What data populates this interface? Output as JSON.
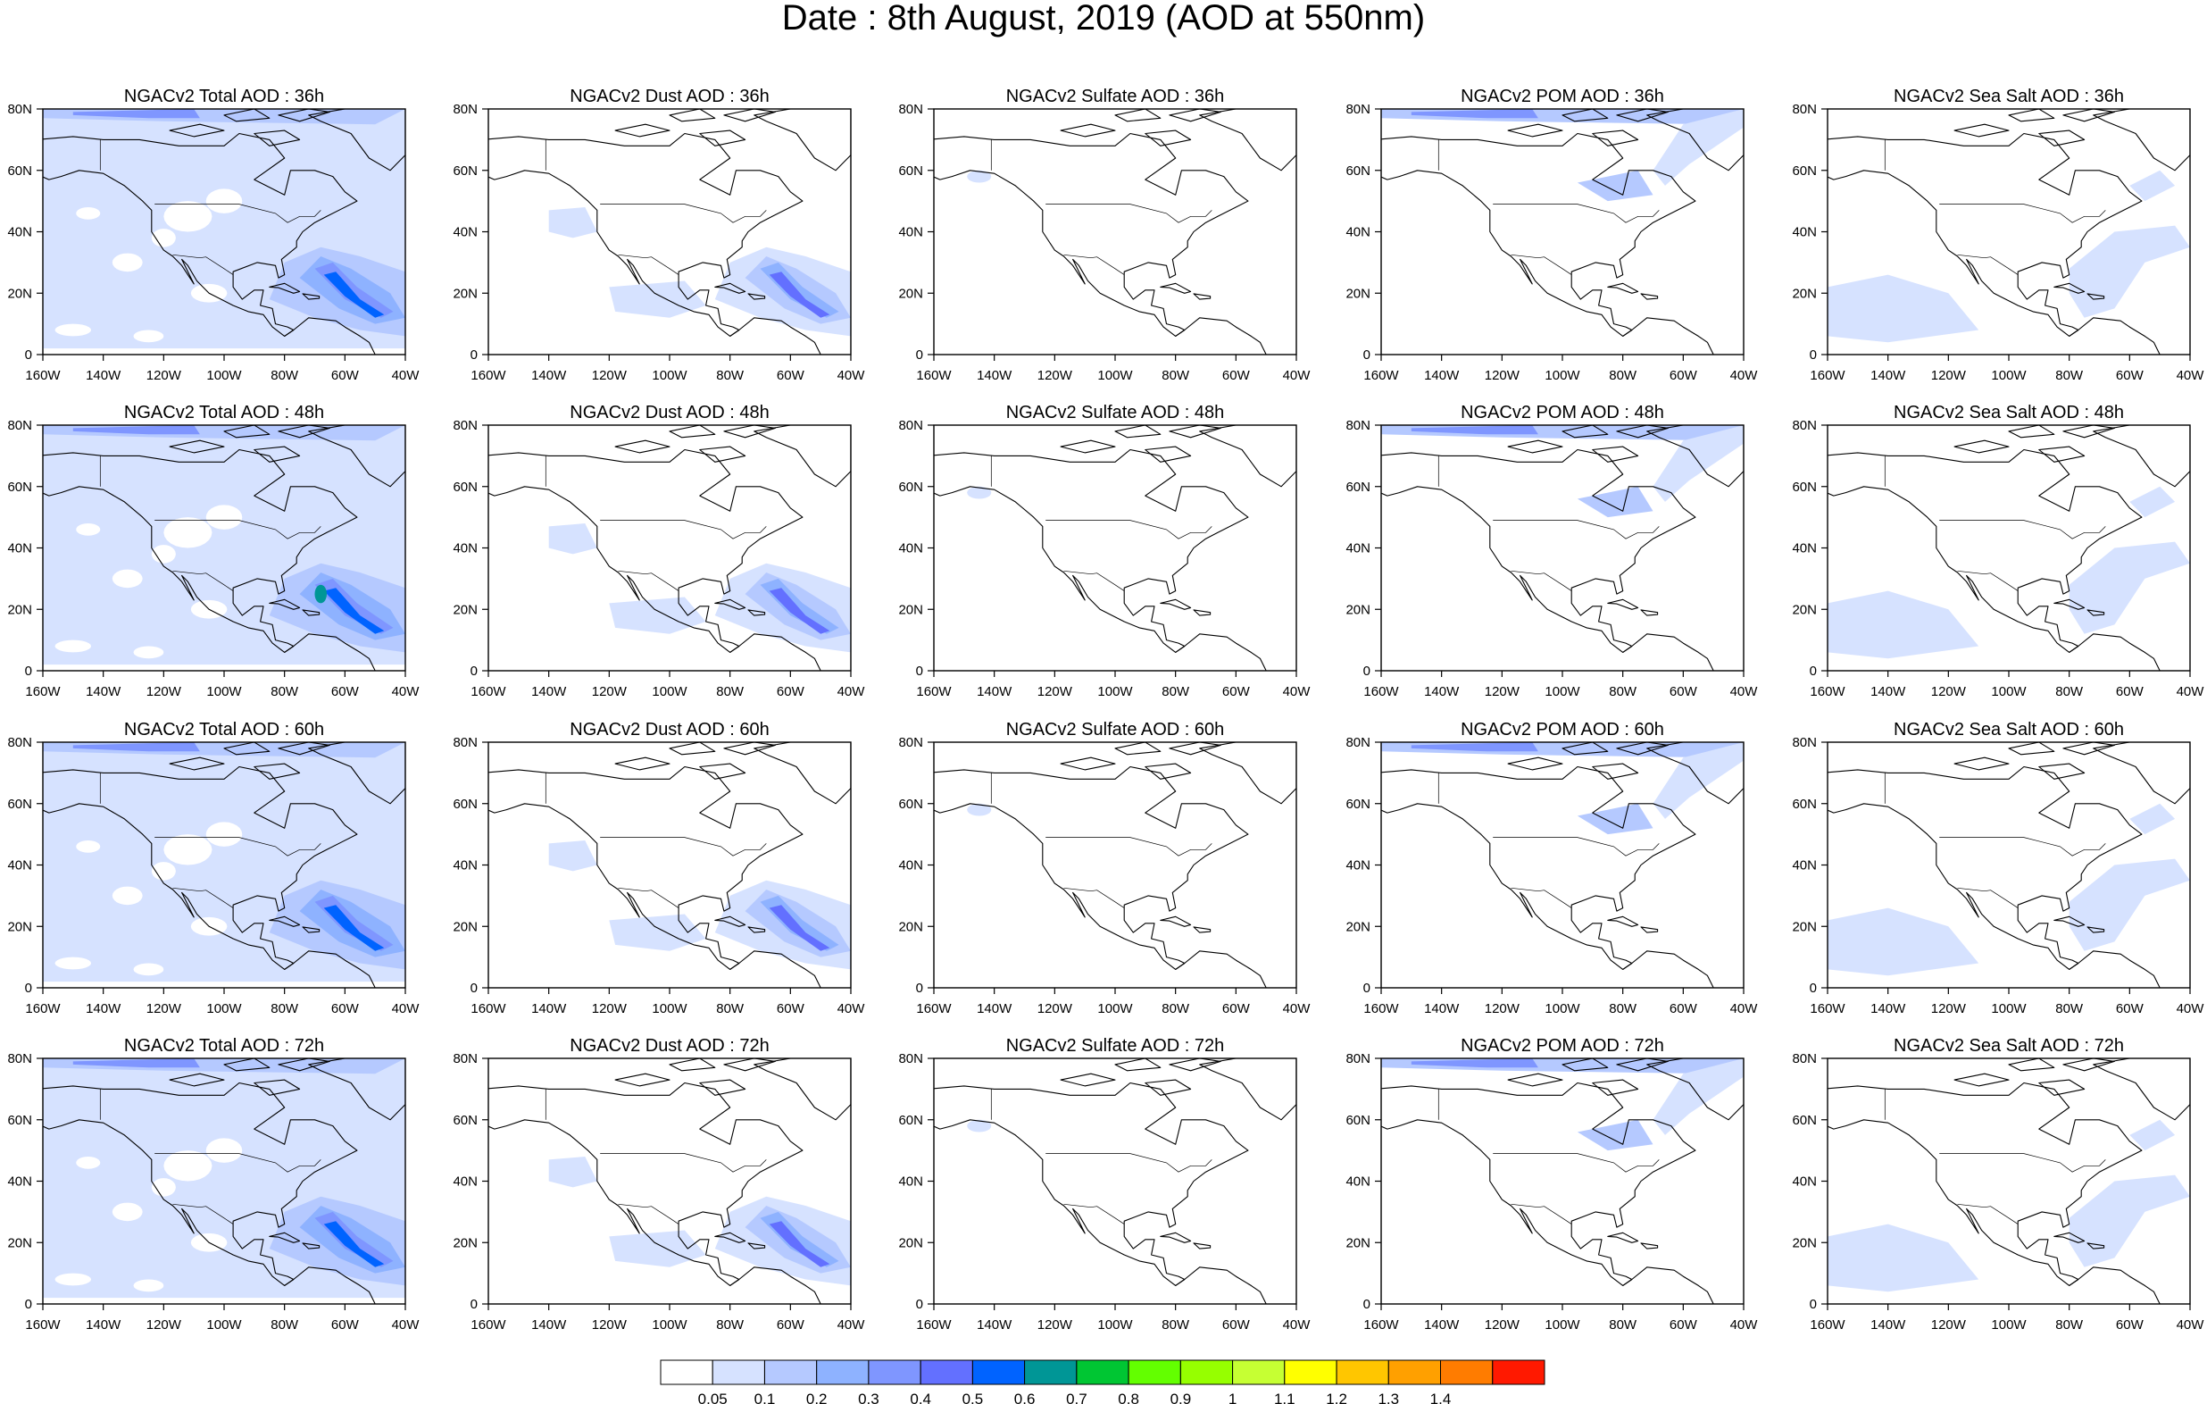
{
  "page": {
    "title": "Date : 8th August, 2019 (AOD at 550nm)"
  },
  "chart_data": {
    "type": "heatmap",
    "title": "Date : 8th August, 2019 (AOD at 550nm)",
    "variable": "AOD at 550nm",
    "map_extent": {
      "lon": [
        -160,
        -40
      ],
      "lat": [
        0,
        80
      ]
    },
    "x_ticks": [
      "160W",
      "140W",
      "120W",
      "100W",
      "80W",
      "60W",
      "40W"
    ],
    "y_ticks": [
      "0",
      "20N",
      "40N",
      "60N",
      "80N"
    ],
    "colorbar": {
      "levels": [
        "0.05",
        "0.1",
        "0.2",
        "0.3",
        "0.4",
        "0.5",
        "0.6",
        "0.7",
        "0.8",
        "0.9",
        "1",
        "1.1",
        "1.2",
        "1.3",
        "1.4"
      ],
      "colors": [
        "#ffffff",
        "#d6e2ff",
        "#b5c9ff",
        "#8eb2ff",
        "#7f96ff",
        "#6370ff",
        "#0063ff",
        "#009696",
        "#00c633",
        "#63ff00",
        "#96ff00",
        "#c6ff33",
        "#ffff00",
        "#ffc600",
        "#ffa000",
        "#ff7c00",
        "#ff1900"
      ]
    },
    "panels": [
      {
        "title": "NGACv2 Total AOD : 36h",
        "species": "total",
        "hour": 36
      },
      {
        "title": "NGACv2 Dust AOD : 36h",
        "species": "dust",
        "hour": 36
      },
      {
        "title": "NGACv2 Sulfate AOD : 36h",
        "species": "sulfate",
        "hour": 36
      },
      {
        "title": "NGACv2 POM AOD : 36h",
        "species": "pom",
        "hour": 36
      },
      {
        "title": "NGACv2 Sea Salt AOD : 36h",
        "species": "seasalt",
        "hour": 36
      },
      {
        "title": "NGACv2 Total AOD : 48h",
        "species": "total",
        "hour": 48
      },
      {
        "title": "NGACv2 Dust AOD : 48h",
        "species": "dust",
        "hour": 48
      },
      {
        "title": "NGACv2 Sulfate AOD : 48h",
        "species": "sulfate",
        "hour": 48
      },
      {
        "title": "NGACv2 POM AOD : 48h",
        "species": "pom",
        "hour": 48
      },
      {
        "title": "NGACv2 Sea Salt AOD : 48h",
        "species": "seasalt",
        "hour": 48
      },
      {
        "title": "NGACv2 Total AOD : 60h",
        "species": "total",
        "hour": 60
      },
      {
        "title": "NGACv2 Dust AOD : 60h",
        "species": "dust",
        "hour": 60
      },
      {
        "title": "NGACv2 Sulfate AOD : 60h",
        "species": "sulfate",
        "hour": 60
      },
      {
        "title": "NGACv2 POM AOD : 60h",
        "species": "pom",
        "hour": 60
      },
      {
        "title": "NGACv2 Sea Salt AOD : 60h",
        "species": "seasalt",
        "hour": 60
      },
      {
        "title": "NGACv2 Total AOD : 72h",
        "species": "total",
        "hour": 72
      },
      {
        "title": "NGACv2 Dust AOD : 72h",
        "species": "dust",
        "hour": 72
      },
      {
        "title": "NGACv2 Sulfate AOD : 72h",
        "species": "sulfate",
        "hour": 72
      },
      {
        "title": "NGACv2 POM AOD : 72h",
        "species": "pom",
        "hour": 72
      },
      {
        "title": "NGACv2 Sea Salt  AOD : 72h",
        "species": "seasalt",
        "hour": 72
      }
    ]
  }
}
